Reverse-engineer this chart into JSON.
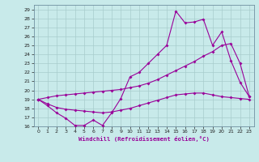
{
  "xlabel": "Windchill (Refroidissement éolien,°C)",
  "bg_color": "#c8eaea",
  "grid_color": "#a8cccc",
  "line_color": "#990099",
  "xlim": [
    -0.5,
    23.5
  ],
  "ylim": [
    16,
    29.5
  ],
  "yticks": [
    16,
    17,
    18,
    19,
    20,
    21,
    22,
    23,
    24,
    25,
    26,
    27,
    28,
    29
  ],
  "xticks": [
    0,
    1,
    2,
    3,
    4,
    5,
    6,
    7,
    8,
    9,
    10,
    11,
    12,
    13,
    14,
    15,
    16,
    17,
    18,
    19,
    20,
    21,
    22,
    23
  ],
  "s1_x": [
    0,
    1,
    2,
    3,
    4,
    5,
    6,
    7,
    8,
    9,
    10,
    11,
    12,
    13,
    14,
    15,
    16,
    17,
    18,
    19,
    20,
    21,
    22,
    23
  ],
  "s1_y": [
    19.0,
    18.3,
    17.5,
    16.9,
    16.1,
    16.1,
    16.7,
    16.1,
    17.5,
    19.1,
    21.5,
    22.0,
    23.0,
    24.0,
    25.0,
    28.8,
    27.5,
    27.6,
    27.9,
    25.0,
    26.5,
    23.3,
    20.9,
    19.3
  ],
  "s2_x": [
    0,
    1,
    2,
    3,
    4,
    5,
    6,
    7,
    8,
    9,
    10,
    11,
    12,
    13,
    14,
    15,
    16,
    17,
    18,
    19,
    20,
    21,
    22,
    23
  ],
  "s2_y": [
    19.0,
    18.5,
    18.1,
    17.9,
    17.8,
    17.7,
    17.6,
    17.5,
    17.6,
    17.8,
    18.0,
    18.3,
    18.6,
    18.9,
    19.2,
    19.5,
    19.6,
    19.7,
    19.7,
    19.5,
    19.3,
    19.2,
    19.1,
    19.0
  ],
  "s3_x": [
    0,
    1,
    2,
    3,
    4,
    5,
    6,
    7,
    8,
    9,
    10,
    11,
    12,
    13,
    14,
    15,
    16,
    17,
    18,
    19,
    20,
    21,
    22,
    23
  ],
  "s3_y": [
    19.0,
    19.2,
    19.4,
    19.5,
    19.6,
    19.7,
    19.8,
    19.9,
    20.0,
    20.1,
    20.3,
    20.5,
    20.8,
    21.2,
    21.7,
    22.2,
    22.7,
    23.2,
    23.8,
    24.3,
    25.0,
    25.2,
    23.0,
    19.3
  ]
}
